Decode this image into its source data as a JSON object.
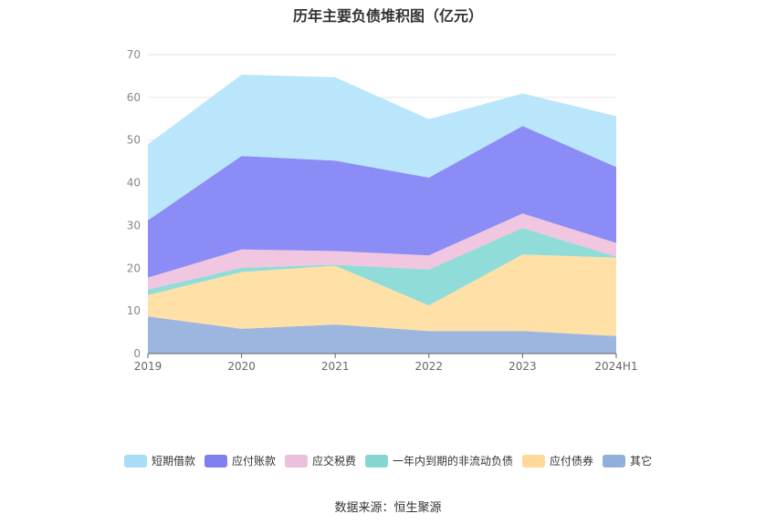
{
  "chart_data": {
    "type": "area",
    "stacked": true,
    "title": "历年主要负债堆积图（亿元）",
    "source": "数据来源：恒生聚源",
    "categories": [
      "2019",
      "2020",
      "2021",
      "2022",
      "2023",
      "2024H1"
    ],
    "ylim": [
      0,
      70
    ],
    "yticks": [
      0,
      10,
      20,
      30,
      40,
      50,
      60,
      70
    ],
    "grid": true,
    "legend_position": "bottom",
    "series": [
      {
        "name": "其它",
        "color": "#9db6e0",
        "values": [
          8.7,
          5.8,
          6.8,
          5.3,
          5.3,
          4.1
        ]
      },
      {
        "name": "应付债券",
        "color": "#ffe0a6",
        "values": [
          5.0,
          13.3,
          13.8,
          6.0,
          17.9,
          18.4
        ]
      },
      {
        "name": "一年内到期的非流动负债",
        "color": "#8fdcd8",
        "values": [
          1.3,
          1.0,
          0.2,
          8.4,
          6.2,
          0.2
        ]
      },
      {
        "name": "应交税费",
        "color": "#f0c6e0",
        "values": [
          2.8,
          4.3,
          3.2,
          3.3,
          3.4,
          3.2
        ]
      },
      {
        "name": "应付账款",
        "color": "#8c8cf6",
        "values": [
          13.4,
          21.9,
          21.2,
          18.2,
          20.5,
          17.8
        ]
      },
      {
        "name": "短期借款",
        "color": "#b9e6fb",
        "values": [
          17.8,
          19.0,
          19.5,
          13.7,
          7.6,
          11.9
        ]
      }
    ],
    "legend_order": [
      "短期借款",
      "应付账款",
      "应交税费",
      "一年内到期的非流动负债",
      "应付债券",
      "其它"
    ],
    "legend_colors": {
      "短期借款": "#a8dcf7",
      "应付账款": "#7f7ff0",
      "应交税费": "#ecbfdc",
      "一年内到期的非流动负债": "#85d6d2",
      "应付债券": "#ffd998",
      "其它": "#92afdb"
    }
  }
}
